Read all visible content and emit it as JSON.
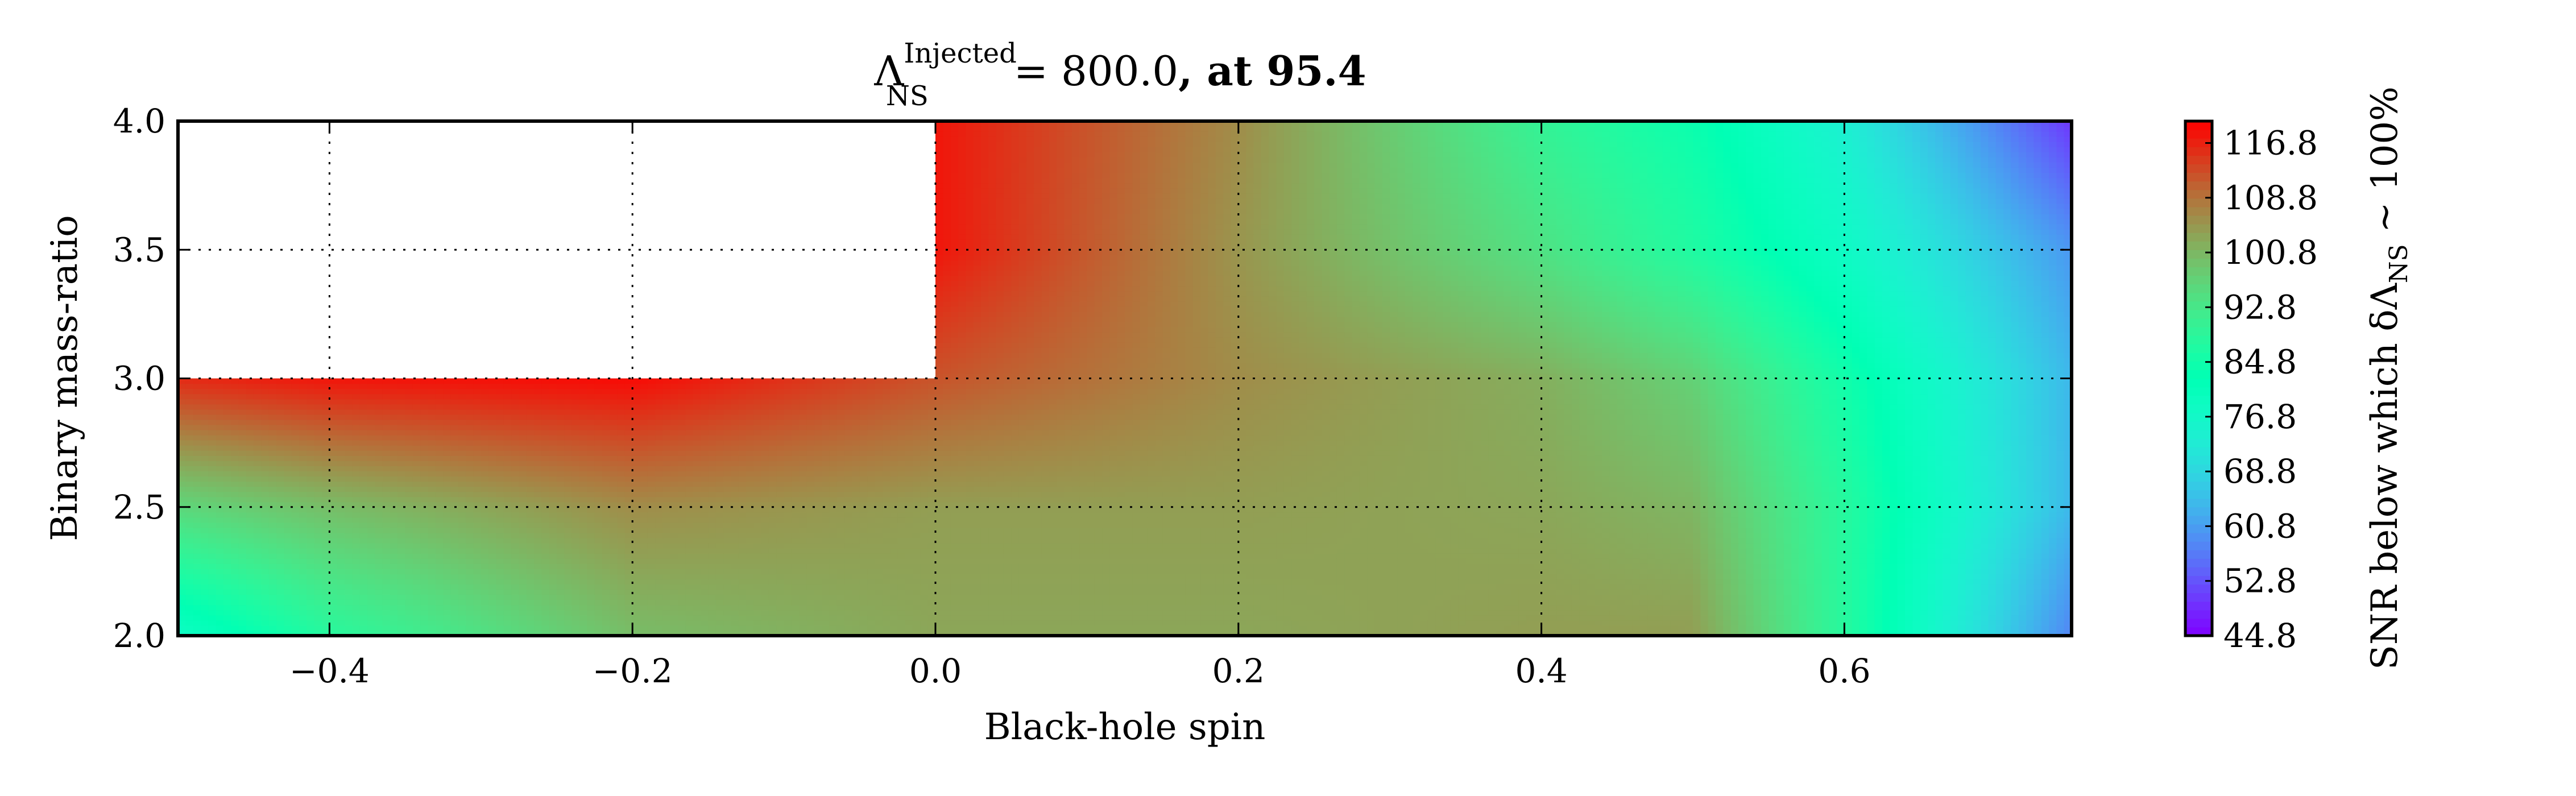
{
  "chart_data": {
    "type": "heatmap",
    "title": {
      "symbol": "Λ",
      "superscript": "Injected",
      "subscript": "NS",
      "equals_value": "= 800.0",
      "bold_suffix": ", at 95.4"
    },
    "xlabel": "Black-hole spin",
    "ylabel": "Binary mass-ratio",
    "colorbar_label": {
      "prefix": "SNR below which δΛ",
      "subscript": "NS",
      "suffix": " ∼ 100%"
    },
    "xlim": [
      -0.5,
      0.75
    ],
    "ylim": [
      2.0,
      4.0
    ],
    "xticks": [
      -0.4,
      -0.2,
      0.0,
      0.2,
      0.4,
      0.6
    ],
    "xtick_labels": [
      "−0.4",
      "−0.2",
      "0.0",
      "0.2",
      "0.4",
      "0.6"
    ],
    "yticks": [
      2.0,
      2.5,
      3.0,
      3.5,
      4.0
    ],
    "ytick_labels": [
      "2.0",
      "2.5",
      "3.0",
      "3.5",
      "4.0"
    ],
    "colorbar_range": [
      44.8,
      120.0
    ],
    "colorbar_ticks": [
      116.8,
      108.8,
      100.8,
      92.8,
      84.8,
      76.8,
      68.8,
      60.8,
      52.8,
      44.8
    ],
    "colorbar_tick_labels": [
      "116.8",
      "108.8",
      "100.8",
      "92.8",
      "84.8",
      "76.8",
      "68.8",
      "60.8",
      "52.8",
      "44.8"
    ],
    "colormap": "rainbow",
    "grid": true,
    "masked_region": {
      "x": [
        -0.5,
        0.0
      ],
      "y": [
        3.0,
        4.0
      ]
    },
    "x_grid_values": [
      -0.5,
      -0.4,
      -0.2,
      0.0,
      0.2,
      0.4,
      0.5,
      0.6,
      0.75
    ],
    "y_grid_values": [
      2.0,
      2.5,
      3.0,
      3.5,
      4.0
    ],
    "snr_grid": [
      [
        78,
        88,
        100,
        103,
        103,
        104,
        104,
        88,
        58
      ],
      [
        96,
        100,
        106,
        104,
        104,
        103,
        101,
        88,
        64
      ],
      [
        116,
        118,
        119,
        112,
        106,
        102,
        97,
        85,
        64
      ],
      [
        null,
        null,
        null,
        118,
        105,
        94,
        87,
        78,
        60
      ],
      [
        null,
        null,
        null,
        118,
        106,
        90,
        84,
        74,
        50
      ]
    ]
  }
}
